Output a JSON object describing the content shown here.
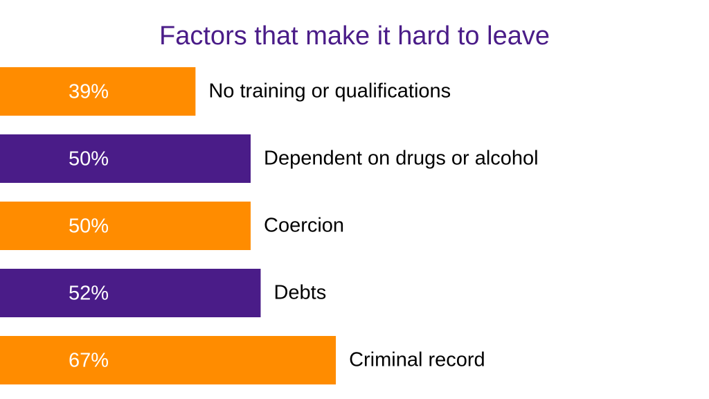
{
  "chart_data": {
    "type": "bar",
    "orientation": "horizontal",
    "title": "Factors that make it hard to leave",
    "categories": [
      "No training or qualifications",
      "Dependent on drugs or alcohol",
      "Coercion",
      "Debts",
      "Criminal record"
    ],
    "values": [
      39,
      50,
      50,
      52,
      67
    ],
    "value_labels": [
      "39%",
      "50%",
      "50%",
      "52%",
      "67%"
    ],
    "colors": [
      "#ff8c00",
      "#4a1c88",
      "#ff8c00",
      "#4a1c88",
      "#ff8c00"
    ]
  }
}
